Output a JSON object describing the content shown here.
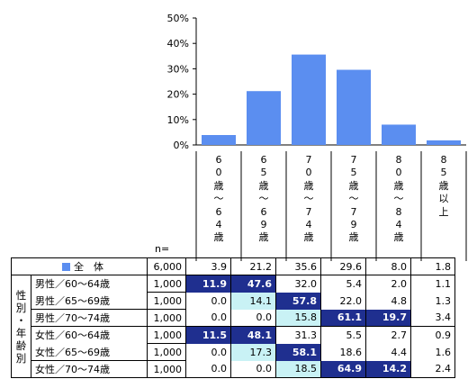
{
  "chart_data": {
    "type": "bar",
    "ylim": [
      0,
      50
    ],
    "yticks": [
      "50%",
      "40%",
      "30%",
      "20%",
      "10%",
      "0%"
    ],
    "categories": [
      "60歳〜64歳",
      "65歳〜69歳",
      "70歳〜74歳",
      "75歳〜79歳",
      "80歳〜84歳",
      "85歳以上"
    ],
    "category_lines": [
      [
        "6",
        "0",
        "歳",
        "〜",
        "6",
        "4",
        "歳"
      ],
      [
        "6",
        "5",
        "歳",
        "〜",
        "6",
        "9",
        "歳"
      ],
      [
        "7",
        "0",
        "歳",
        "〜",
        "7",
        "4",
        "歳"
      ],
      [
        "7",
        "5",
        "歳",
        "〜",
        "7",
        "9",
        "歳"
      ],
      [
        "8",
        "0",
        "歳",
        "〜",
        "8",
        "4",
        "歳"
      ],
      [
        "8",
        "5",
        "歳",
        "以",
        "上"
      ]
    ],
    "values": [
      3.9,
      21.2,
      35.6,
      29.6,
      8.0,
      1.8
    ],
    "bar_color": "#5b8ef0",
    "n_label": "n=",
    "table": {
      "total": {
        "label": "全　体",
        "n": "6,000",
        "values": [
          "3.9",
          "21.2",
          "35.6",
          "29.6",
          "8.0",
          "1.8"
        ]
      },
      "group_label_chars": [
        "性",
        "別",
        "・",
        "年",
        "齢",
        "別"
      ],
      "rows": [
        {
          "label": "男性／60〜64歳",
          "n": "1,000",
          "values": [
            "11.9",
            "47.6",
            "32.0",
            "5.4",
            "2.0",
            "1.1"
          ]
        },
        {
          "label": "男性／65〜69歳",
          "n": "1,000",
          "values": [
            "0.0",
            "14.1",
            "57.8",
            "22.0",
            "4.8",
            "1.3"
          ]
        },
        {
          "label": "男性／70〜74歳",
          "n": "1,000",
          "values": [
            "0.0",
            "0.0",
            "15.8",
            "61.1",
            "19.7",
            "3.4"
          ]
        },
        {
          "label": "女性／60〜64歳",
          "n": "1,000",
          "values": [
            "11.5",
            "48.1",
            "31.3",
            "5.5",
            "2.7",
            "0.9"
          ]
        },
        {
          "label": "女性／65〜69歳",
          "n": "1,000",
          "values": [
            "0.0",
            "17.3",
            "58.1",
            "18.6",
            "4.4",
            "1.6"
          ]
        },
        {
          "label": "女性／70〜74歳",
          "n": "1,000",
          "values": [
            "0.0",
            "0.0",
            "18.5",
            "64.9",
            "14.2",
            "2.4"
          ]
        }
      ],
      "highlight_dark": [
        [
          0,
          0
        ],
        [
          0,
          1
        ],
        [
          1,
          2
        ],
        [
          2,
          3
        ],
        [
          2,
          4
        ],
        [
          3,
          0
        ],
        [
          3,
          1
        ],
        [
          4,
          2
        ],
        [
          5,
          3
        ],
        [
          5,
          4
        ]
      ],
      "highlight_light": [
        [
          1,
          1
        ],
        [
          2,
          2
        ],
        [
          4,
          1
        ],
        [
          5,
          2
        ]
      ],
      "highlight_dark_color": "#1f2f8f",
      "highlight_light_color": "#c9f2f5"
    }
  }
}
